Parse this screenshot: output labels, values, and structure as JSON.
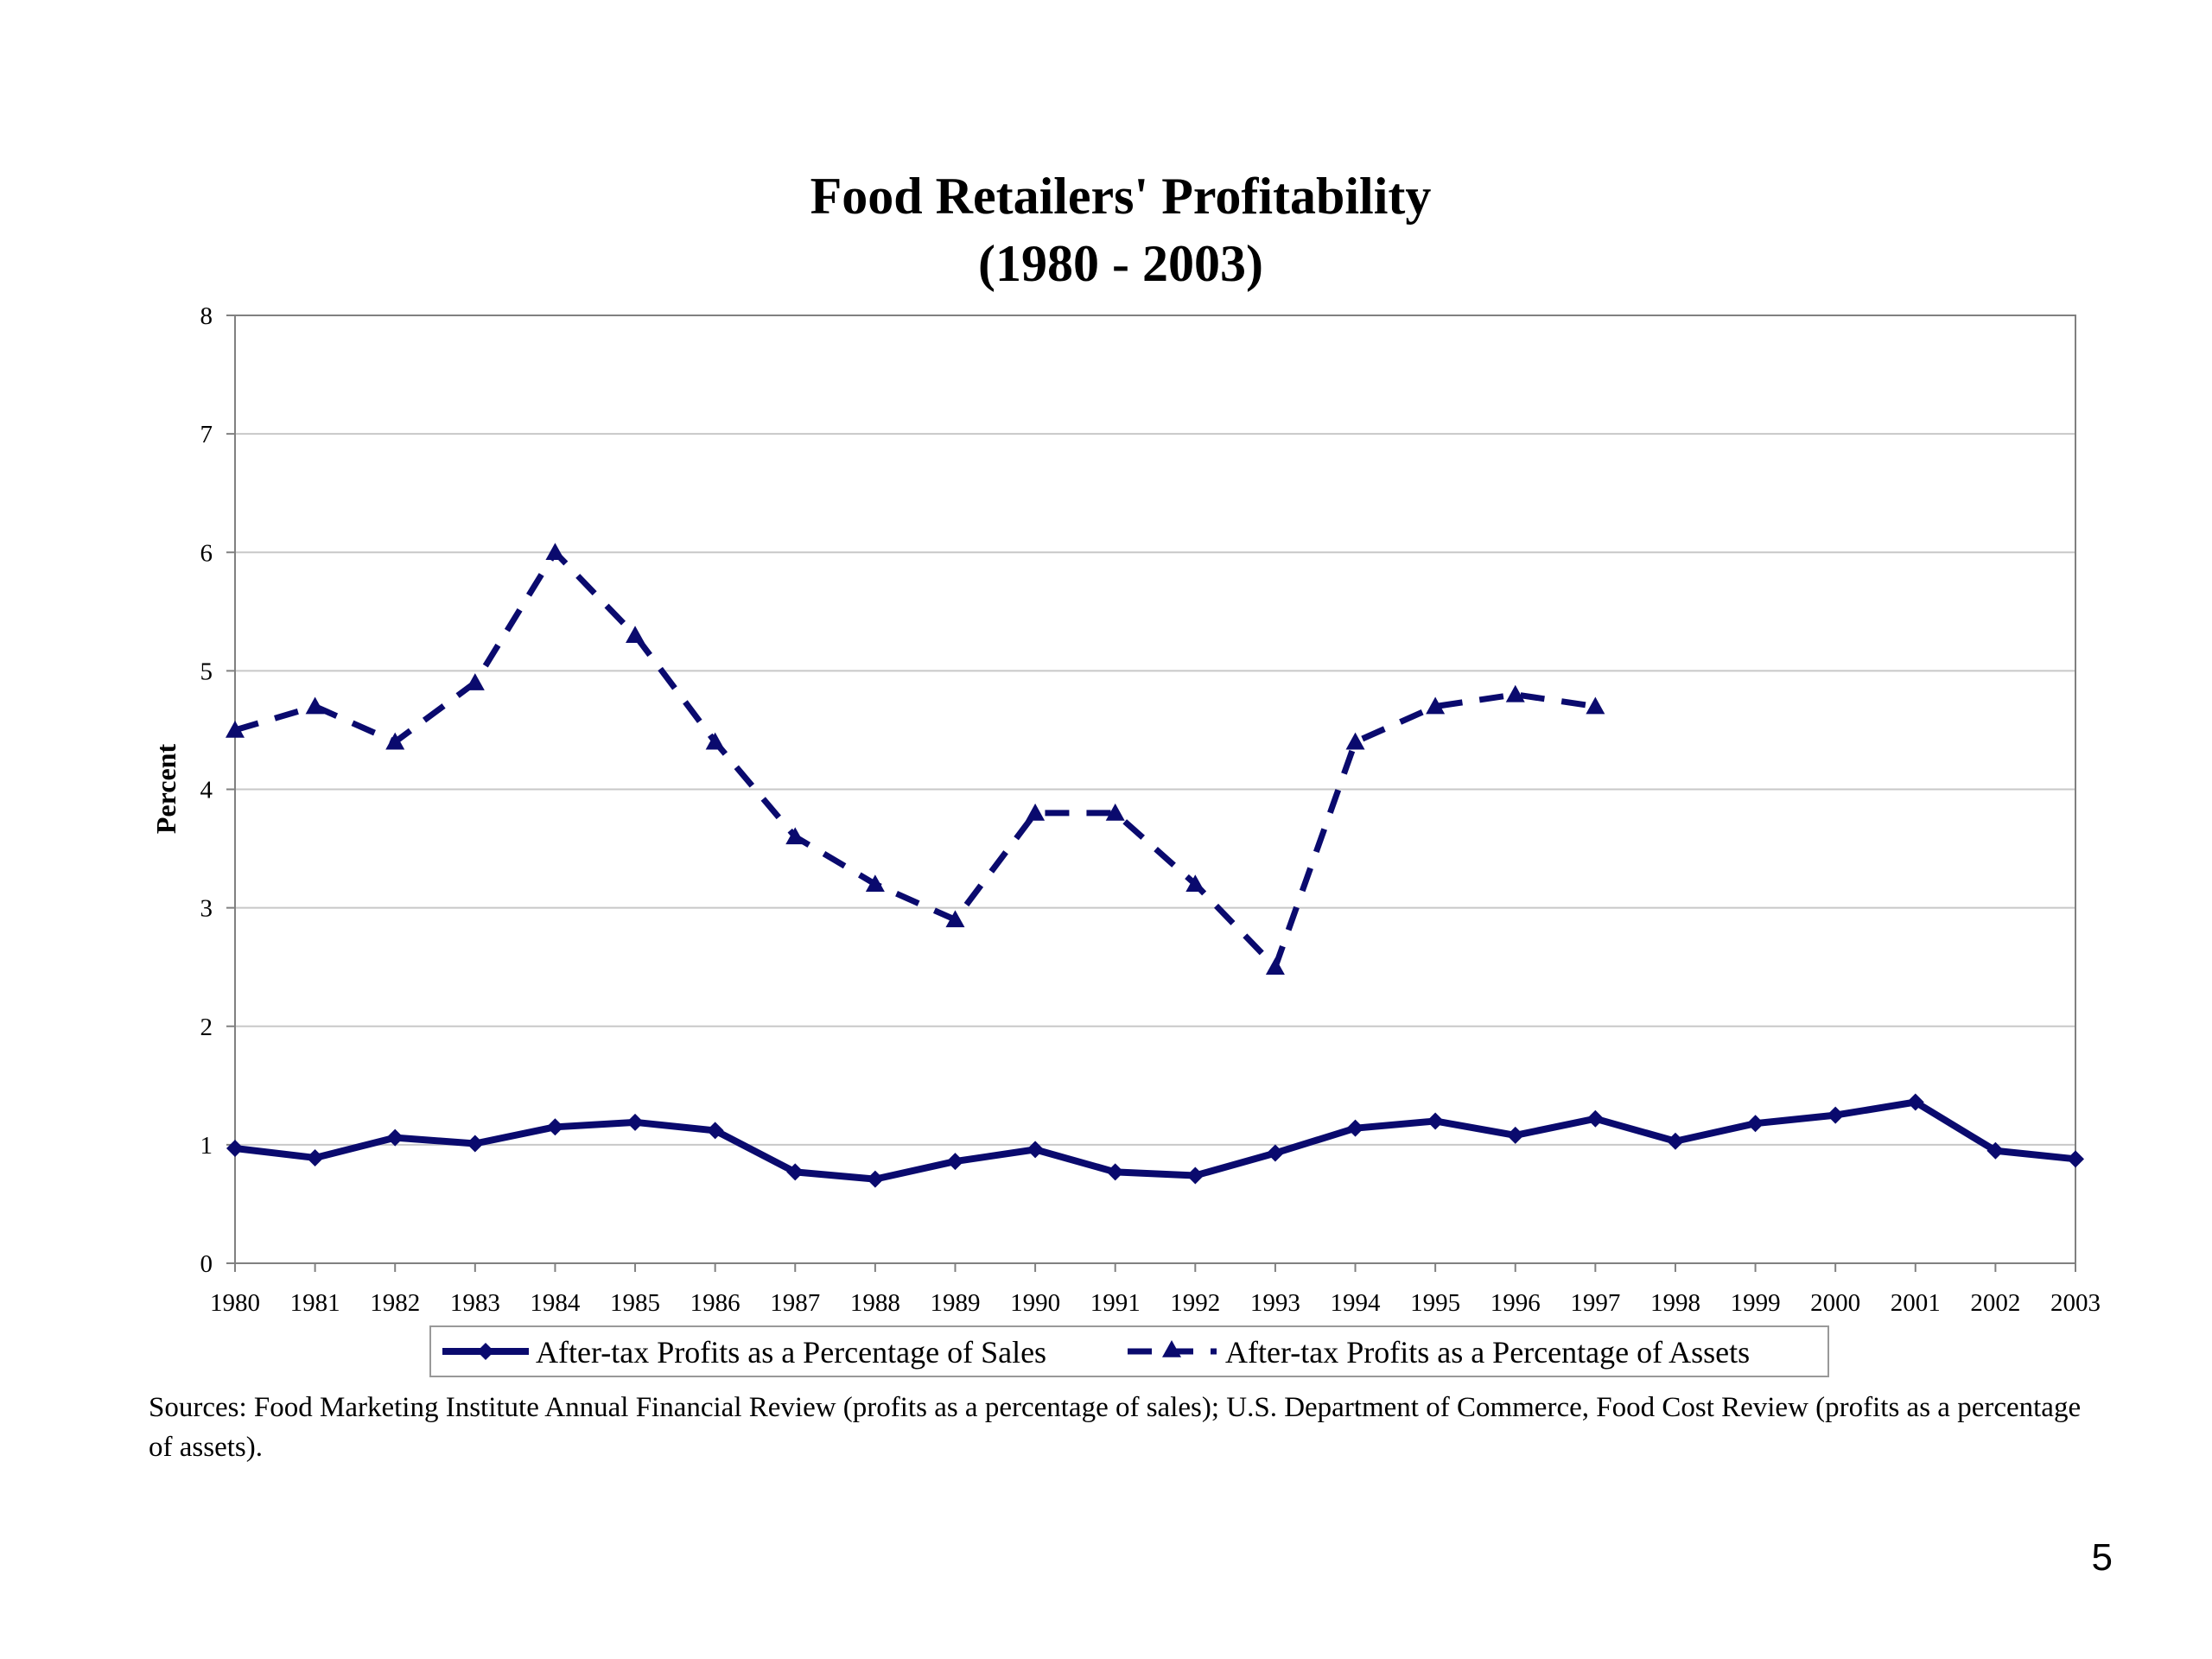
{
  "page_number": "5",
  "sources_text": "Sources: Food Marketing Institute Annual Financial Review (profits as a percentage of sales); U.S. Department of Commerce, Food Cost Review (profits as a percentage of assets).",
  "colors": {
    "series": "#0a0a6e",
    "grid": "#c8c8c8",
    "axis": "#808080"
  },
  "chart_data": {
    "type": "line",
    "title": "Food Retailers' Profitability",
    "subtitle": "(1980 - 2003)",
    "xlabel": "",
    "ylabel": "Percent",
    "ylim": [
      0,
      8
    ],
    "yticks": [
      "0",
      "1",
      "2",
      "3",
      "4",
      "5",
      "6",
      "7",
      "8"
    ],
    "grid": "horizontal",
    "legend_position": "bottom",
    "categories": [
      "1980",
      "1981",
      "1982",
      "1983",
      "1984",
      "1985",
      "1986",
      "1987",
      "1988",
      "1989",
      "1990",
      "1991",
      "1992",
      "1993",
      "1994",
      "1995",
      "1996",
      "1997",
      "1998",
      "1999",
      "2000",
      "2001",
      "2002",
      "2003"
    ],
    "series": [
      {
        "name": "After-tax Profits as a Percentage of Sales",
        "style": "solid",
        "marker": "diamond",
        "values": [
          0.97,
          0.89,
          1.06,
          1.01,
          1.15,
          1.19,
          1.12,
          0.77,
          0.71,
          0.86,
          0.96,
          0.77,
          0.74,
          0.93,
          1.14,
          1.2,
          1.08,
          1.22,
          1.03,
          1.18,
          1.25,
          1.36,
          0.95,
          0.88
        ]
      },
      {
        "name": "After-tax Profits as a Percentage of Assets",
        "style": "dashed",
        "marker": "triangle",
        "values": [
          4.5,
          4.7,
          4.4,
          4.9,
          6.0,
          5.3,
          4.4,
          3.6,
          3.2,
          2.9,
          3.8,
          3.8,
          3.2,
          2.5,
          4.4,
          4.7,
          4.8,
          4.7,
          null,
          null,
          null,
          null,
          null,
          null
        ]
      }
    ]
  }
}
